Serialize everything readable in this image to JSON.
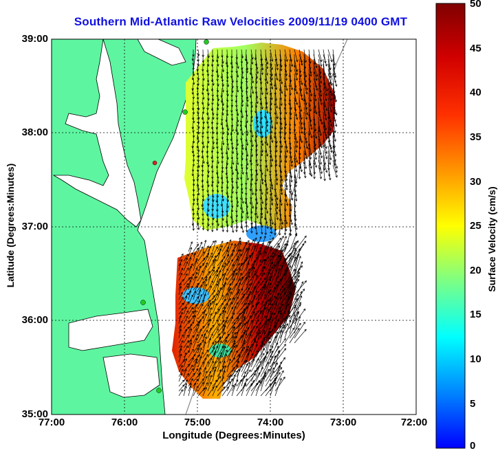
{
  "title": "Southern Mid-Atlantic Raw Velocities 2009/11/19 0400 GMT",
  "xlabel": "Longitude (Degrees:Minutes)",
  "ylabel": "Latitude (Degrees:Minutes)",
  "colorbar_label": "Surface Velocity (cm/s)",
  "x_ticks": [
    "77:00",
    "76:00",
    "75:00",
    "74:00",
    "73:00",
    "72:00"
  ],
  "y_ticks": [
    "39:00",
    "38:00",
    "37:00",
    "36:00",
    "35:00"
  ],
  "colorbar_ticks": [
    "50",
    "45",
    "40",
    "35",
    "30",
    "25",
    "20",
    "15",
    "10",
    "5",
    "0"
  ],
  "colors": {
    "land": "#5ef5a0",
    "title": "#1010e0",
    "stations": "#22cc22",
    "station_red": "#dd2222"
  },
  "colormap": "jet",
  "colorbar_range": [
    0,
    50
  ],
  "map_extent": {
    "lon": [
      -77,
      -72
    ],
    "lat": [
      35,
      39
    ]
  }
}
